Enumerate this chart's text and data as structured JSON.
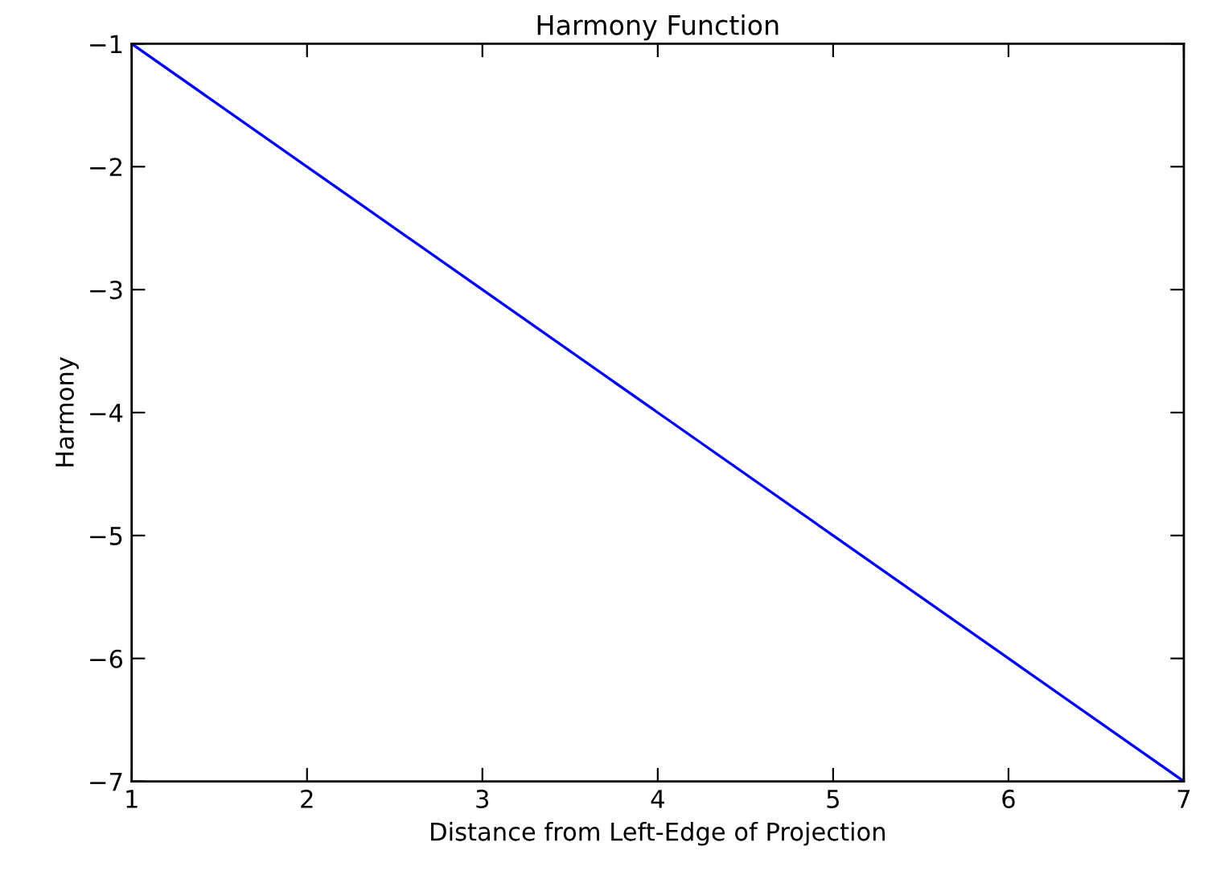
{
  "chart_data": {
    "type": "line",
    "title": "Harmony Function",
    "xlabel": "Distance from Left-Edge of Projection",
    "ylabel": "Harmony",
    "x": [
      1,
      2,
      3,
      4,
      5,
      6,
      7
    ],
    "series": [
      {
        "color": "#0000ff",
        "values": [
          -1,
          -2,
          -3,
          -4,
          -5,
          -6,
          -7
        ]
      }
    ],
    "xlim": [
      1,
      7
    ],
    "xticks": [
      1,
      2,
      3,
      4,
      5,
      6,
      7
    ],
    "ylim": [
      -7,
      -1
    ],
    "yticks": [
      -7,
      -6,
      -5,
      -4,
      -3,
      -2,
      -1
    ],
    "grid": false
  }
}
